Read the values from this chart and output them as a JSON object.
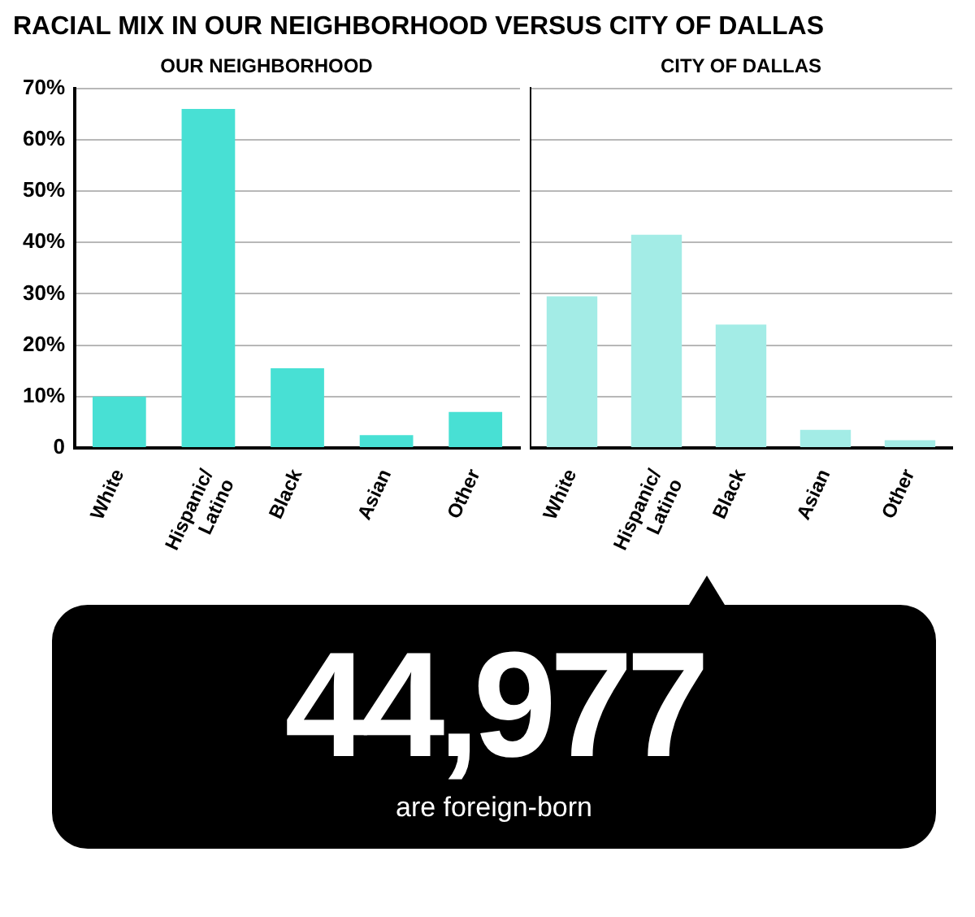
{
  "chart_data": [
    {
      "type": "bar",
      "title": "RACIAL MIX IN OUR NEIGHBORHOOD VERSUS CITY OF DALLAS",
      "subtitle": "OUR NEIGHBORHOOD",
      "categories": [
        "White",
        "Hispanic/\nLatino",
        "Black",
        "Asian",
        "Other"
      ],
      "values": [
        10,
        66,
        15.5,
        2.5,
        7
      ],
      "color": "#48e0d4",
      "ylim": [
        0,
        70
      ],
      "yticks": [
        {
          "value": 0,
          "label": "0"
        },
        {
          "value": 10,
          "label": "10%"
        },
        {
          "value": 20,
          "label": "20%"
        },
        {
          "value": 30,
          "label": "30%"
        },
        {
          "value": 40,
          "label": "40%"
        },
        {
          "value": 50,
          "label": "50%"
        },
        {
          "value": 60,
          "label": "60%"
        },
        {
          "value": 70,
          "label": "70%"
        }
      ],
      "grid": "y",
      "legend": false
    },
    {
      "type": "bar",
      "subtitle": "CITY OF DALLAS",
      "categories": [
        "White",
        "Hispanic/\nLatino",
        "Black",
        "Asian",
        "Other"
      ],
      "values": [
        29.5,
        41.5,
        24,
        3.5,
        1.5
      ],
      "color": "#a3ece6",
      "ylim": [
        0,
        70
      ],
      "yticks": [
        {
          "value": 0,
          "label": null
        },
        {
          "value": 10,
          "label": null
        },
        {
          "value": 20,
          "label": null
        },
        {
          "value": 30,
          "label": null
        },
        {
          "value": 40,
          "label": null
        },
        {
          "value": 50,
          "label": null
        },
        {
          "value": 60,
          "label": null
        },
        {
          "value": 70,
          "label": null
        }
      ],
      "grid": "y",
      "legend": false,
      "tick_labels": "x"
    },
    {
      "type": "other",
      "annotations": [
        "44,977",
        "are foreign-born"
      ]
    }
  ]
}
